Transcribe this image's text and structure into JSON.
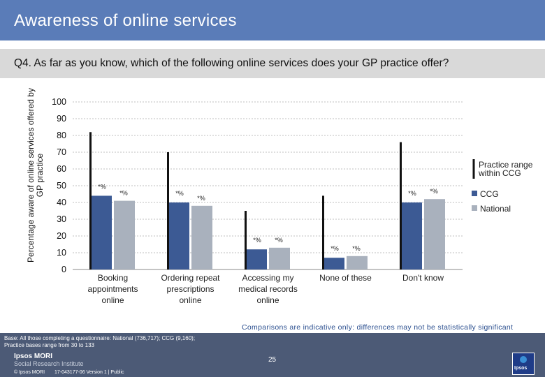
{
  "header": {
    "title": "Awareness of online services"
  },
  "question": "Q4. As far as you know, which of the following online services does your GP practice offer?",
  "note": "Comparisons are indicative only: differences may not be statistically significant",
  "footer": {
    "base_line1": "Base: All those completing a questionnaire: National (736,717); CCG (9,160);",
    "base_line2": "Practice bases range from 30 to 133",
    "logo_line1": "Ipsos MORI",
    "logo_line2": "Social Research Institute",
    "page": "25",
    "copyright": "© Ipsos MORI",
    "version": "17-043177-06 Version 1 | Public",
    "icon_text": "Ipsos"
  },
  "colors": {
    "ccg": "#3c5a94",
    "national": "#a9b1bd",
    "range": "#111111",
    "grid": "#bfbfbf"
  },
  "chart_data": {
    "type": "bar",
    "ylabel": "Percentage aware of online services offered by GP practice",
    "ylim": [
      0,
      100
    ],
    "yticks": [
      0,
      10,
      20,
      30,
      40,
      50,
      60,
      70,
      80,
      90,
      100
    ],
    "categories": [
      [
        "Booking",
        "appointments",
        "online"
      ],
      [
        "Ordering repeat",
        "prescriptions",
        "online"
      ],
      [
        "Accessing my",
        "medical records",
        "online"
      ],
      [
        "None of these"
      ],
      [
        "Don't know"
      ]
    ],
    "series": [
      {
        "name": "CCG",
        "values": [
          44,
          40,
          12,
          7,
          40
        ],
        "labels": [
          "*%",
          "*%",
          "*%",
          "*%",
          "*%"
        ]
      },
      {
        "name": "National",
        "values": [
          41,
          38,
          13,
          8,
          42
        ],
        "labels": [
          "*%",
          "*%",
          "*%",
          "*%",
          "*%"
        ]
      }
    ],
    "range": {
      "name": "Practice range within CCG",
      "low": [
        0,
        0,
        0,
        0,
        0
      ],
      "high": [
        82,
        70,
        35,
        44,
        76
      ]
    },
    "legend": [
      "Practice range",
      "within CCG",
      "CCG",
      "National"
    ],
    "legend_position": "right",
    "grid": true
  }
}
